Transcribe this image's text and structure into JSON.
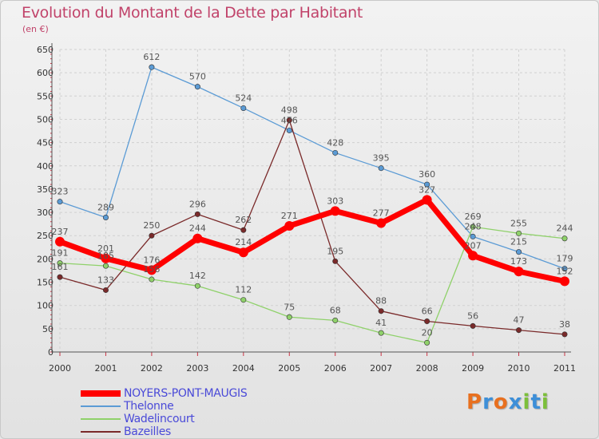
{
  "title": "Evolution du Montant de la Dette par Habitant",
  "subtitle": "(en €)",
  "logo": {
    "text": "Proxiti",
    "colors": [
      "#e8701f",
      "#3d8fd8",
      "#e8701f",
      "#3d8fd8",
      "#7cbf3a",
      "#3d8fd8",
      "#7cbf3a"
    ]
  },
  "chart_data": {
    "type": "line",
    "title": "Evolution du Montant de la Dette par Habitant",
    "ylabel": "(en €)",
    "xlabel": "",
    "x": [
      "2000",
      "2001",
      "2002",
      "2003",
      "2004",
      "2005",
      "2006",
      "2007",
      "2008",
      "2009",
      "2010",
      "2011"
    ],
    "ylim": [
      0,
      650
    ],
    "yticks": [
      0,
      50,
      100,
      150,
      200,
      250,
      300,
      350,
      400,
      450,
      500,
      550,
      600,
      650
    ],
    "grid": true,
    "legend": "bottom-left",
    "series": [
      {
        "name": "Thelonne",
        "color": "#5b9bd5",
        "values": [
          323,
          289,
          612,
          570,
          524,
          476,
          428,
          395,
          360,
          248,
          215,
          179
        ]
      },
      {
        "name": "Wadelincourt",
        "color": "#8fd16a",
        "values": [
          191,
          185,
          156,
          142,
          112,
          75,
          68,
          41,
          20,
          269,
          255,
          244
        ]
      },
      {
        "name": "Bazeilles",
        "color": "#7a2a2a",
        "values": [
          161,
          133,
          250,
          296,
          262,
          498,
          195,
          88,
          66,
          56,
          47,
          38
        ]
      },
      {
        "name": "NOYERS-PONT-MAUGIS",
        "color": "#ff0000",
        "values": [
          237,
          201,
          176,
          244,
          214,
          271,
          303,
          277,
          327,
          207,
          173,
          152
        ]
      }
    ]
  }
}
